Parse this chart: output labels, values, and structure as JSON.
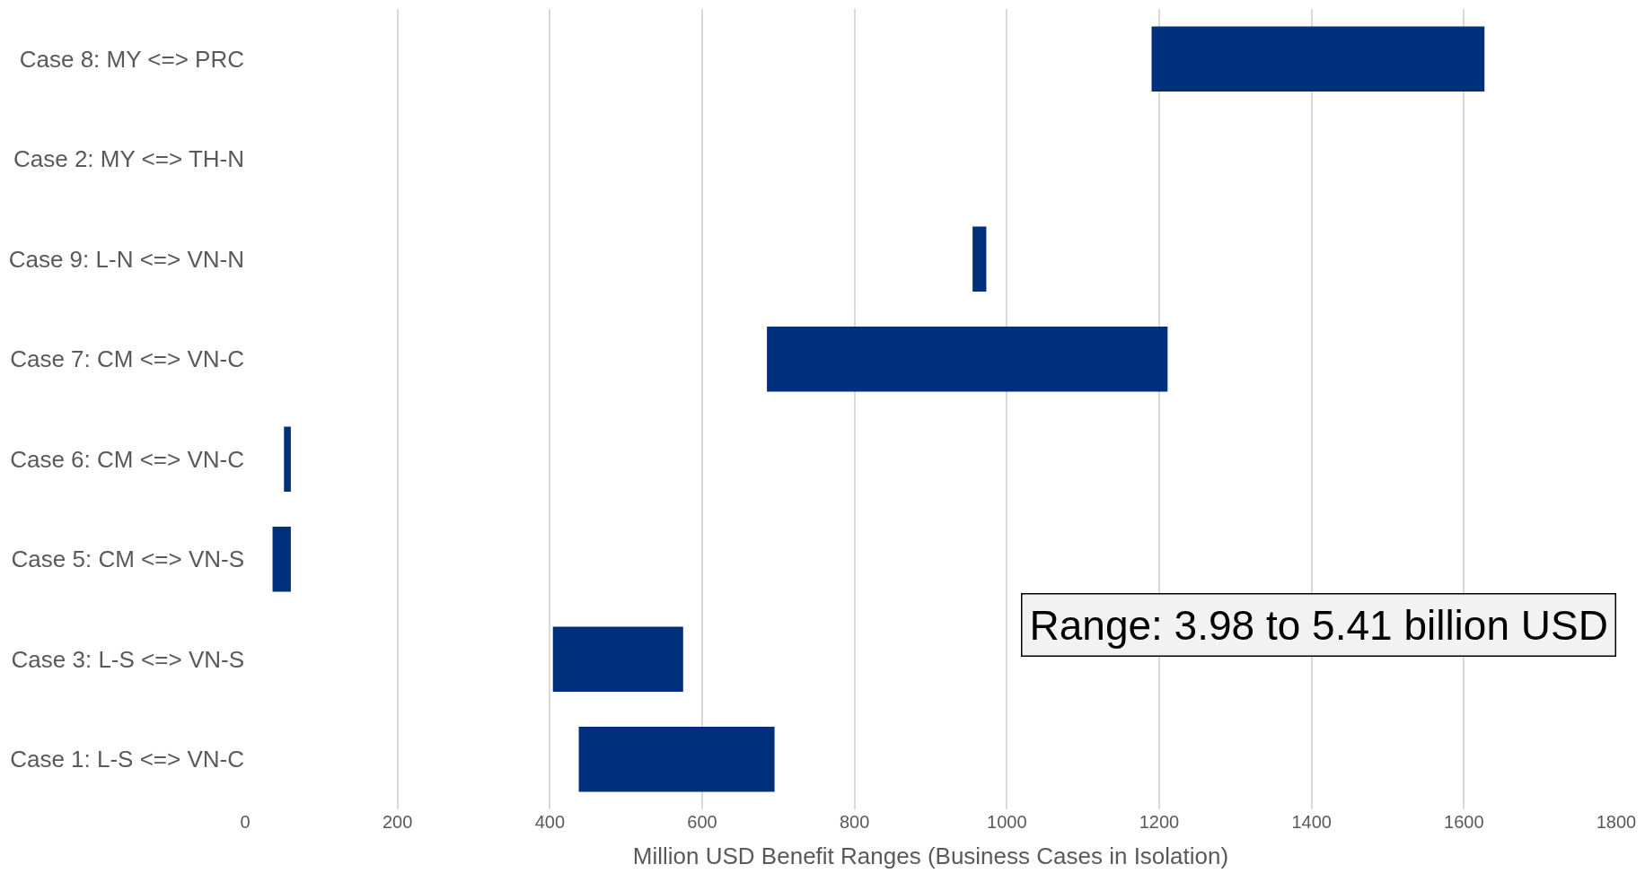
{
  "chart_data": {
    "type": "bar",
    "orientation": "horizontal",
    "categories": [
      "Case 8: MY <=> PRC",
      "Case 2: MY <=> TH-N",
      "Case 9: L-N <=> VN-N",
      "Case 7: CM <=> VN-C",
      "Case 6: CM <=> VN-C",
      "Case 5: CM <=> VN-S",
      "Case 3: L-S <=> VN-S",
      "Case 1: L-S <=> VN-C"
    ],
    "base": [
      1190,
      null,
      955,
      685,
      51,
      36,
      404,
      438
    ],
    "values": [
      437,
      null,
      18,
      526,
      9,
      24,
      171,
      257
    ],
    "color": "#00307c",
    "xlim": [
      0,
      1800
    ],
    "xticks": [
      0,
      200,
      400,
      600,
      800,
      1000,
      1200,
      1400,
      1600,
      1800
    ],
    "xlabel": "Million USD Benefit Ranges (Business Cases in Isolation)",
    "grid": "x",
    "legend": false,
    "annotations": [
      "Range: 3.98 to 5.41 billion USD"
    ]
  }
}
